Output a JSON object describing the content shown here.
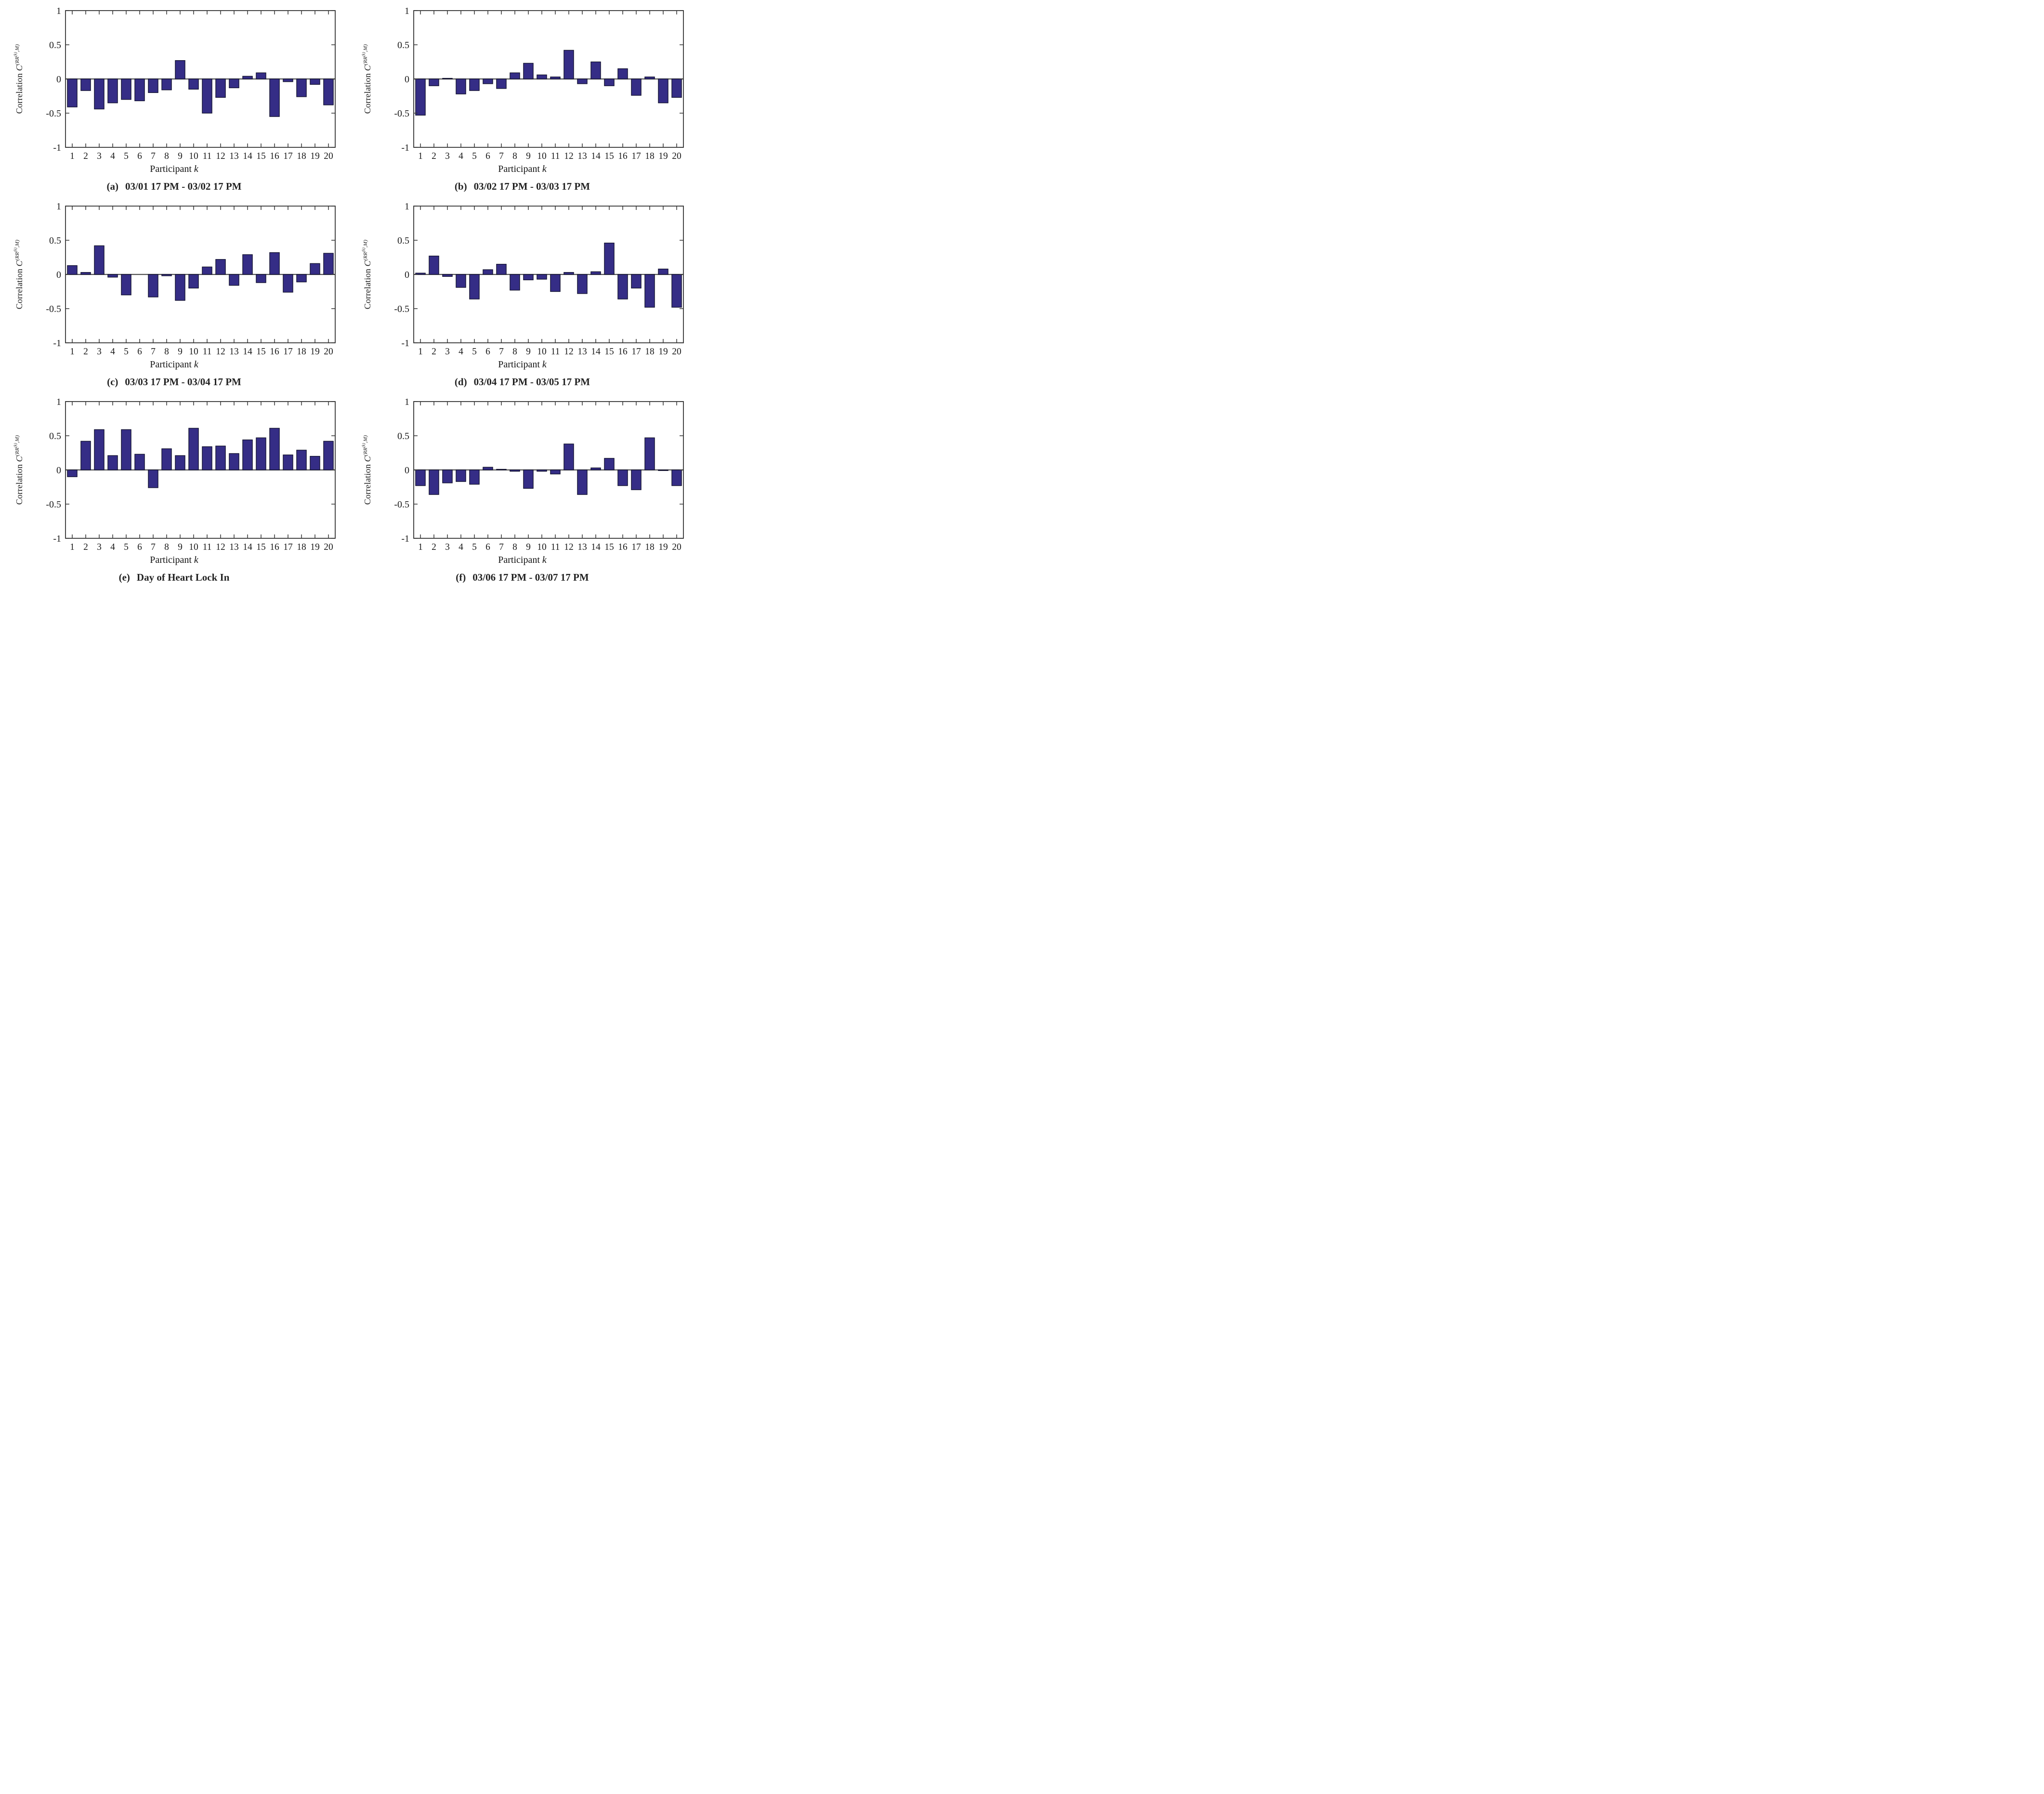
{
  "colors": {
    "bar_fill": "#352D86",
    "bar_edge": "#10102A",
    "axis": "#333333",
    "zero_line": "#555555",
    "text": "#1a1a1a"
  },
  "axes": {
    "ylabel_prefix": "Correlation",
    "ylabel_symbol": "C",
    "ylabel_sup_open": "(RR",
    "ylabel_sup_inner": "(k)",
    "ylabel_sup_close": ",M)",
    "xlabel_text": "Participant",
    "xlabel_var": "k",
    "ylim": [
      -1,
      1
    ],
    "yticks": [
      1,
      0.5,
      0,
      -0.5,
      -1
    ],
    "ytick_labels": [
      "1",
      "0.5",
      "0",
      "-0.5",
      "-1"
    ]
  },
  "chart_data": [
    {
      "type": "bar",
      "caption_label": "(a)",
      "caption_text": "03/01 17 PM - 03/02 17 PM",
      "xlabel": "Participant k",
      "ylabel": "Correlation C^(RR^(k),M)",
      "ylim": [
        -1,
        1
      ],
      "categories": [
        "1",
        "2",
        "3",
        "4",
        "5",
        "6",
        "7",
        "8",
        "9",
        "10",
        "11",
        "12",
        "13",
        "14",
        "15",
        "16",
        "17",
        "18",
        "19",
        "20"
      ],
      "values": [
        -0.41,
        -0.17,
        -0.44,
        -0.35,
        -0.3,
        -0.32,
        -0.2,
        -0.16,
        0.27,
        -0.15,
        -0.5,
        -0.27,
        -0.13,
        0.04,
        0.09,
        -0.55,
        -0.04,
        -0.26,
        -0.08,
        -0.38
      ]
    },
    {
      "type": "bar",
      "caption_label": "(b)",
      "caption_text": "03/02 17 PM - 03/03 17 PM",
      "xlabel": "Participant k",
      "ylabel": "Correlation C^(RR^(k),M)",
      "ylim": [
        -1,
        1
      ],
      "categories": [
        "1",
        "2",
        "3",
        "4",
        "5",
        "6",
        "7",
        "8",
        "9",
        "10",
        "11",
        "12",
        "13",
        "14",
        "15",
        "16",
        "17",
        "18",
        "19",
        "20"
      ],
      "values": [
        -0.53,
        -0.1,
        0.01,
        -0.22,
        -0.17,
        -0.07,
        -0.14,
        0.09,
        0.23,
        0.06,
        0.03,
        0.42,
        -0.07,
        0.25,
        -0.1,
        0.15,
        -0.24,
        0.03,
        -0.35,
        -0.27
      ]
    },
    {
      "type": "bar",
      "caption_label": "(c)",
      "caption_text": "03/03 17 PM - 03/04 17 PM",
      "xlabel": "Participant k",
      "ylabel": "Correlation C^(RR^(k),M)",
      "ylim": [
        -1,
        1
      ],
      "categories": [
        "1",
        "2",
        "3",
        "4",
        "5",
        "6",
        "7",
        "8",
        "9",
        "10",
        "11",
        "12",
        "13",
        "14",
        "15",
        "16",
        "17",
        "18",
        "19",
        "20"
      ],
      "values": [
        0.13,
        0.03,
        0.42,
        -0.04,
        -0.3,
        0.0,
        -0.33,
        -0.02,
        -0.38,
        -0.2,
        0.11,
        0.22,
        -0.16,
        0.29,
        -0.12,
        0.32,
        -0.26,
        -0.11,
        0.16,
        0.31
      ]
    },
    {
      "type": "bar",
      "caption_label": "(d)",
      "caption_text": "03/04 17 PM - 03/05 17 PM",
      "xlabel": "Participant k",
      "ylabel": "Correlation C^(RR^(k),M)",
      "ylim": [
        -1,
        1
      ],
      "categories": [
        "1",
        "2",
        "3",
        "4",
        "5",
        "6",
        "7",
        "8",
        "9",
        "10",
        "11",
        "12",
        "13",
        "14",
        "15",
        "16",
        "17",
        "18",
        "19",
        "20"
      ],
      "values": [
        0.02,
        0.27,
        -0.03,
        -0.19,
        -0.36,
        0.07,
        0.15,
        -0.23,
        -0.08,
        -0.07,
        -0.25,
        0.03,
        -0.28,
        0.04,
        0.46,
        -0.36,
        -0.2,
        -0.48,
        0.08,
        -0.48
      ]
    },
    {
      "type": "bar",
      "caption_label": "(e)",
      "caption_text": "Day of Heart Lock In",
      "xlabel": "Participant k",
      "ylabel": "Correlation C^(RR^(k),M)",
      "ylim": [
        -1,
        1
      ],
      "categories": [
        "1",
        "2",
        "3",
        "4",
        "5",
        "6",
        "7",
        "8",
        "9",
        "10",
        "11",
        "12",
        "13",
        "14",
        "15",
        "16",
        "17",
        "18",
        "19",
        "20"
      ],
      "values": [
        -0.1,
        0.42,
        0.59,
        0.21,
        0.59,
        0.23,
        -0.26,
        0.31,
        0.21,
        0.61,
        0.34,
        0.35,
        0.24,
        0.44,
        0.47,
        0.61,
        0.22,
        0.29,
        0.2,
        0.42
      ]
    },
    {
      "type": "bar",
      "caption_label": "(f)",
      "caption_text": "03/06 17 PM - 03/07 17 PM",
      "xlabel": "Participant k",
      "ylabel": "Correlation C^(RR^(k),M)",
      "ylim": [
        -1,
        1
      ],
      "categories": [
        "1",
        "2",
        "3",
        "4",
        "5",
        "6",
        "7",
        "8",
        "9",
        "10",
        "11",
        "12",
        "13",
        "14",
        "15",
        "16",
        "17",
        "18",
        "19",
        "20"
      ],
      "values": [
        -0.23,
        -0.36,
        -0.19,
        -0.17,
        -0.21,
        0.04,
        0.01,
        -0.02,
        -0.27,
        -0.02,
        -0.06,
        0.38,
        -0.36,
        0.03,
        0.17,
        -0.23,
        -0.29,
        0.47,
        -0.01,
        -0.23
      ]
    }
  ]
}
